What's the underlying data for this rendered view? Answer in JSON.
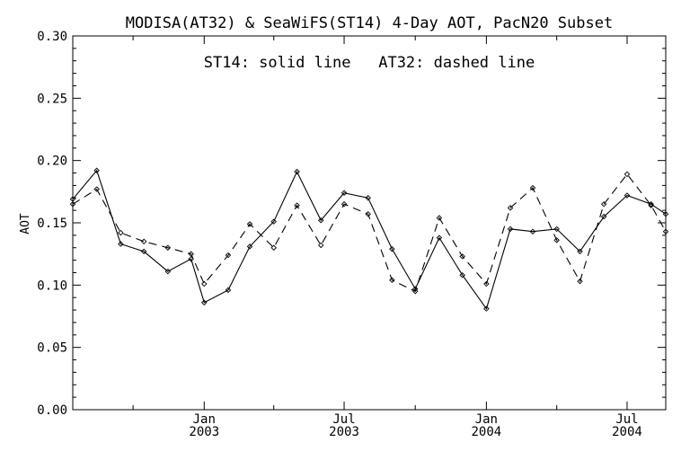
{
  "chart_data": {
    "type": "line",
    "title": "MODISA(AT32) & SeaWiFS(ST14) 4-Day AOT, PacN20 Subset",
    "annotation": "ST14: solid line   AT32: dashed line",
    "xlabel": "",
    "ylabel": "AOT",
    "ylim": [
      0.0,
      0.3
    ],
    "yticks": [
      "0.00",
      "0.05",
      "0.10",
      "0.15",
      "0.20",
      "0.25",
      "0.30"
    ],
    "xlim": [
      "2002-07-15",
      "2004-08-20"
    ],
    "xticks": [
      {
        "date": "2003-01-01",
        "month": "Jan",
        "year": "2003"
      },
      {
        "date": "2003-07-01",
        "month": "Jul",
        "year": "2003"
      },
      {
        "date": "2004-01-01",
        "month": "Jan",
        "year": "2004"
      },
      {
        "date": "2004-07-01",
        "month": "Jul",
        "year": "2004"
      }
    ],
    "minor_xticks": [
      "2002-10-01",
      "2003-04-01",
      "2003-10-01",
      "2004-04-01"
    ],
    "grid": false,
    "series": [
      {
        "name": "ST14",
        "style": "solid",
        "points": [
          [
            "2002-07-15",
            0.169
          ],
          [
            "2002-08-15",
            0.192
          ],
          [
            "2002-09-15",
            0.133
          ],
          [
            "2002-10-15",
            0.127
          ],
          [
            "2002-11-15",
            0.111
          ],
          [
            "2002-12-15",
            0.121
          ],
          [
            "2003-01-01",
            0.086
          ],
          [
            "2003-02-01",
            0.096
          ],
          [
            "2003-03-01",
            0.131
          ],
          [
            "2003-04-01",
            0.151
          ],
          [
            "2003-05-01",
            0.191
          ],
          [
            "2003-06-01",
            0.152
          ],
          [
            "2003-07-01",
            0.174
          ],
          [
            "2003-08-01",
            0.17
          ],
          [
            "2003-09-01",
            0.129
          ],
          [
            "2003-10-01",
            0.097
          ],
          [
            "2003-11-01",
            0.138
          ],
          [
            "2003-12-01",
            0.108
          ],
          [
            "2004-01-01",
            0.081
          ],
          [
            "2004-02-01",
            0.145
          ],
          [
            "2004-03-01",
            0.143
          ],
          [
            "2004-04-01",
            0.145
          ],
          [
            "2004-05-01",
            0.127
          ],
          [
            "2004-06-01",
            0.155
          ],
          [
            "2004-07-01",
            0.172
          ],
          [
            "2004-08-01",
            0.165
          ],
          [
            "2004-08-20",
            0.157
          ]
        ]
      },
      {
        "name": "AT32",
        "style": "dashed",
        "points": [
          [
            "2002-07-15",
            0.165
          ],
          [
            "2002-08-15",
            0.177
          ],
          [
            "2002-09-15",
            0.142
          ],
          [
            "2002-10-15",
            0.135
          ],
          [
            "2002-11-15",
            0.13
          ],
          [
            "2002-12-15",
            0.125
          ],
          [
            "2003-01-01",
            0.101
          ],
          [
            "2003-02-01",
            0.124
          ],
          [
            "2003-03-01",
            0.149
          ],
          [
            "2003-04-01",
            0.13
          ],
          [
            "2003-05-01",
            0.164
          ],
          [
            "2003-06-01",
            0.132
          ],
          [
            "2003-07-01",
            0.165
          ],
          [
            "2003-08-01",
            0.157
          ],
          [
            "2003-09-01",
            0.104
          ],
          [
            "2003-10-01",
            0.095
          ],
          [
            "2003-11-01",
            0.154
          ],
          [
            "2003-12-01",
            0.123
          ],
          [
            "2004-01-01",
            0.101
          ],
          [
            "2004-02-01",
            0.162
          ],
          [
            "2004-03-01",
            0.178
          ],
          [
            "2004-04-01",
            0.136
          ],
          [
            "2004-05-01",
            0.103
          ],
          [
            "2004-06-01",
            0.165
          ],
          [
            "2004-07-01",
            0.189
          ],
          [
            "2004-08-01",
            0.164
          ],
          [
            "2004-08-20",
            0.143
          ]
        ]
      }
    ]
  }
}
